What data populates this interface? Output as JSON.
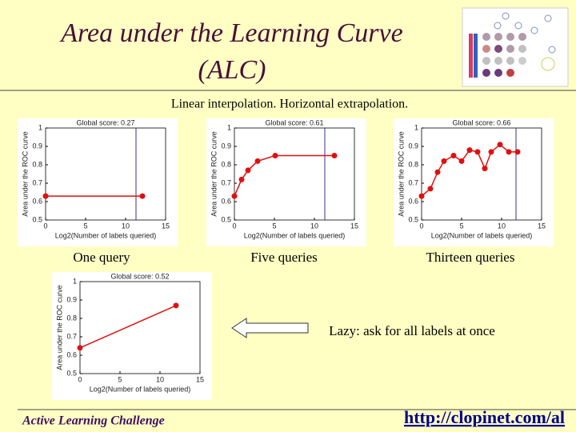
{
  "slide": {
    "title_line1": "Area under the Learning Curve",
    "title_line2": "(ALC)",
    "subtitle": "Linear interpolation. Horizontal extrapolation.",
    "captions": [
      "One query",
      "Five queries",
      "Thirteen queries"
    ],
    "lazy_note": "Lazy: ask for all labels at once",
    "footer_left": "Active Learning Challenge",
    "footer_right": "http://clopinet.com/al"
  },
  "chart_data": [
    {
      "type": "line",
      "title": "Global score: 0.27",
      "y_label": "Area under the ROC curve",
      "x_label": "Log2(Number of labels queried)",
      "x": [
        0,
        12.1
      ],
      "values": [
        0.63,
        0.63
      ],
      "color": "#e01010",
      "vline": 11.3,
      "vline_color": "#303090",
      "xlim": [
        0,
        15
      ],
      "xticks": [
        0,
        5,
        10,
        15
      ],
      "ylim": [
        0.5,
        1
      ],
      "yticks": [
        0.5,
        0.6,
        0.7,
        0.8,
        0.9,
        1
      ]
    },
    {
      "type": "line",
      "title": "Global score: 0.61",
      "y_label": "Area under the ROC curve",
      "x_label": "Log2(Number of labels queried)",
      "x": [
        0,
        0.9,
        1.7,
        2.9,
        5.1,
        12.5
      ],
      "values": [
        0.63,
        0.72,
        0.77,
        0.82,
        0.85,
        0.85
      ],
      "color": "#e01010",
      "vline": 11.3,
      "vline_color": "#303090",
      "xlim": [
        0,
        15
      ],
      "xticks": [
        0,
        5,
        10,
        15
      ],
      "ylim": [
        0.5,
        1
      ],
      "yticks": [
        0.5,
        0.6,
        0.7,
        0.8,
        0.9,
        1
      ]
    },
    {
      "type": "line",
      "title": "Global score: 0.66",
      "y_label": "Area under the ROC curve",
      "x_label": "Log2(Number of labels queried)",
      "x": [
        0,
        1.1,
        2,
        2.8,
        4,
        5,
        6,
        7,
        7.9,
        8.7,
        9.8,
        10.9,
        12
      ],
      "values": [
        0.63,
        0.67,
        0.76,
        0.82,
        0.85,
        0.82,
        0.88,
        0.87,
        0.78,
        0.87,
        0.91,
        0.87,
        0.87
      ],
      "color": "#e01010",
      "vline": 11.8,
      "vline_color": "#303090",
      "xlim": [
        0,
        15
      ],
      "xticks": [
        0,
        5,
        10,
        15
      ],
      "ylim": [
        0.5,
        1
      ],
      "yticks": [
        0.5,
        0.6,
        0.7,
        0.8,
        0.9,
        1
      ]
    },
    {
      "type": "line",
      "title": "Global score: 0.52",
      "y_label": "Area under the ROC curve",
      "x_label": "Log2(Number of labels queried)",
      "x": [
        0,
        12
      ],
      "values": [
        0.64,
        0.87
      ],
      "color": "#e01010",
      "xlim": [
        0,
        15
      ],
      "xticks": [
        0,
        5,
        10,
        15
      ],
      "ylim": [
        0.5,
        1
      ],
      "yticks": [
        0.5,
        0.6,
        0.7,
        0.8,
        0.9,
        1
      ]
    }
  ]
}
